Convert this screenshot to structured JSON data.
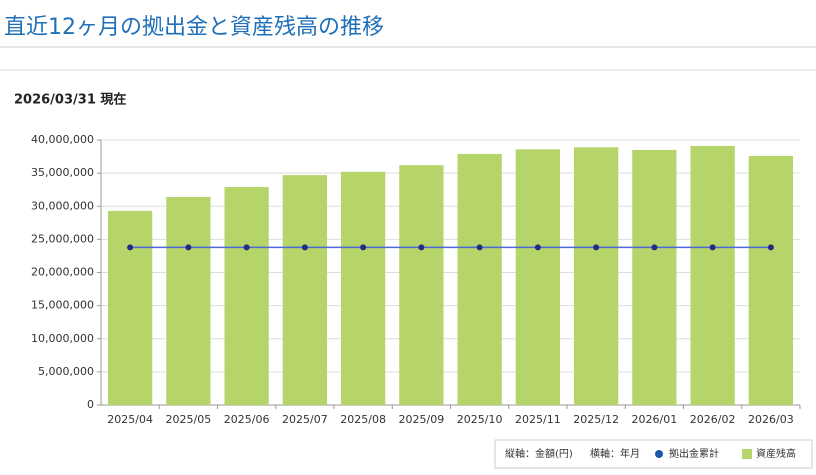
{
  "page": {
    "title": "直近12ヶ月の拠出金と資産残高の推移",
    "as_of": "2026/03/31 現在"
  },
  "chart_data": {
    "type": "bar",
    "x_label": "横軸：年月",
    "y_label": "縦軸：金額(円)",
    "categories": [
      "2025/04",
      "2025/05",
      "2025/06",
      "2025/07",
      "2025/08",
      "2025/09",
      "2025/10",
      "2025/11",
      "2025/12",
      "2026/01",
      "2026/02",
      "2026/03"
    ],
    "series": [
      {
        "name": "拠出金累計",
        "type": "line",
        "color": "#4a6ad8",
        "marker_color": "#262a85",
        "legend_color": "#1a5aa8",
        "values": [
          23800000,
          23800000,
          23800000,
          23800000,
          23800000,
          23800000,
          23800000,
          23800000,
          23800000,
          23800000,
          23800000,
          23800000
        ]
      },
      {
        "name": "資産残高",
        "type": "bar",
        "color": "#b5d56a",
        "values": [
          29300000,
          31400000,
          32900000,
          34700000,
          35200000,
          36200000,
          37900000,
          38600000,
          38900000,
          38500000,
          39100000,
          37600000
        ]
      }
    ],
    "ylim": [
      0,
      40000000
    ],
    "yticks": [
      0,
      {
        "value": 5000000,
        "label": "5,000,000"
      },
      {
        "value": 10000000,
        "label": "10,000,000"
      },
      {
        "value": 15000000,
        "label": "15,000,000"
      },
      {
        "value": 20000000,
        "label": "20,000,000"
      },
      {
        "value": 25000000,
        "label": "25,000,000"
      },
      {
        "value": 30000000,
        "label": "30,000,000"
      },
      {
        "value": 35000000,
        "label": "35,000,000"
      },
      {
        "value": 40000000,
        "label": "40,000,000"
      }
    ],
    "grid": true
  }
}
